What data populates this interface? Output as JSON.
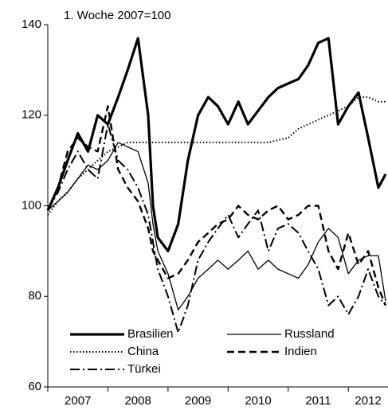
{
  "chart_data": {
    "type": "line",
    "annotation": "1. Woche 2007=100",
    "x": [
      2007.0,
      2007.17,
      2007.33,
      2007.5,
      2007.67,
      2007.83,
      2008.0,
      2008.17,
      2008.33,
      2008.5,
      2008.67,
      2008.75,
      2008.83,
      2009.0,
      2009.17,
      2009.33,
      2009.5,
      2009.67,
      2009.83,
      2010.0,
      2010.17,
      2010.33,
      2010.5,
      2010.67,
      2010.83,
      2011.0,
      2011.17,
      2011.33,
      2011.5,
      2011.67,
      2011.83,
      2012.0,
      2012.17,
      2012.33,
      2012.5,
      2012.62
    ],
    "series": [
      {
        "name": "Brasilien",
        "color": "#000000",
        "linestyle": "solid",
        "linewidth": 3.2,
        "values": [
          99,
          104,
          110,
          116,
          112,
          120,
          118,
          124,
          130,
          137,
          120,
          100,
          93,
          90,
          96,
          110,
          120,
          124,
          122,
          118,
          123,
          118,
          121,
          124,
          126,
          127,
          128,
          131,
          136,
          137,
          118,
          122,
          125,
          115,
          104,
          107
        ]
      },
      {
        "name": "Russland",
        "color": "#000000",
        "linestyle": "solid",
        "linewidth": 1.3,
        "values": [
          99,
          101,
          103,
          106,
          109,
          108,
          110,
          114,
          113,
          112,
          105,
          96,
          90,
          85,
          77,
          80,
          84,
          86,
          88,
          86,
          88,
          90,
          86,
          88,
          86,
          85,
          84,
          87,
          92,
          95,
          93,
          85,
          88,
          89,
          89,
          79
        ]
      },
      {
        "name": "China",
        "color": "#000000",
        "linestyle": "dotted",
        "linewidth": 2,
        "values": [
          98,
          101,
          103,
          106,
          108,
          110,
          112,
          113,
          114,
          114,
          114,
          114,
          114,
          114,
          114,
          114,
          114,
          114,
          114,
          114,
          114,
          114,
          114,
          114,
          114.5,
          115,
          117,
          118,
          119,
          120,
          121,
          122,
          124,
          124,
          123,
          123
        ]
      },
      {
        "name": "Indien",
        "color": "#000000",
        "linestyle": "dashed",
        "linewidth": 2.4,
        "values": [
          99,
          104,
          112,
          115,
          113,
          112,
          122,
          108,
          104,
          101,
          95,
          90,
          88,
          84,
          85,
          88,
          92,
          94,
          96,
          97,
          100,
          98,
          97,
          99,
          100,
          97,
          98,
          100,
          100,
          90,
          86,
          94,
          87,
          90,
          82,
          78
        ]
      },
      {
        "name": "Türkei",
        "color": "#000000",
        "linestyle": "dashdot",
        "linewidth": 2,
        "values": [
          99,
          103,
          108,
          112,
          108,
          106,
          118,
          110,
          108,
          104,
          98,
          92,
          86,
          80,
          72,
          78,
          88,
          92,
          95,
          98,
          93,
          96,
          99,
          90,
          95,
          96,
          94,
          90,
          86,
          78,
          80,
          76,
          80,
          86,
          80,
          78
        ]
      }
    ],
    "xlim": [
      2007,
      2012.66
    ],
    "xticks": [
      2007,
      2008,
      2009,
      2010,
      2011,
      2012
    ],
    "ylim": [
      60,
      140
    ],
    "yticks": [
      60,
      80,
      100,
      120,
      140
    ],
    "grid": false
  }
}
